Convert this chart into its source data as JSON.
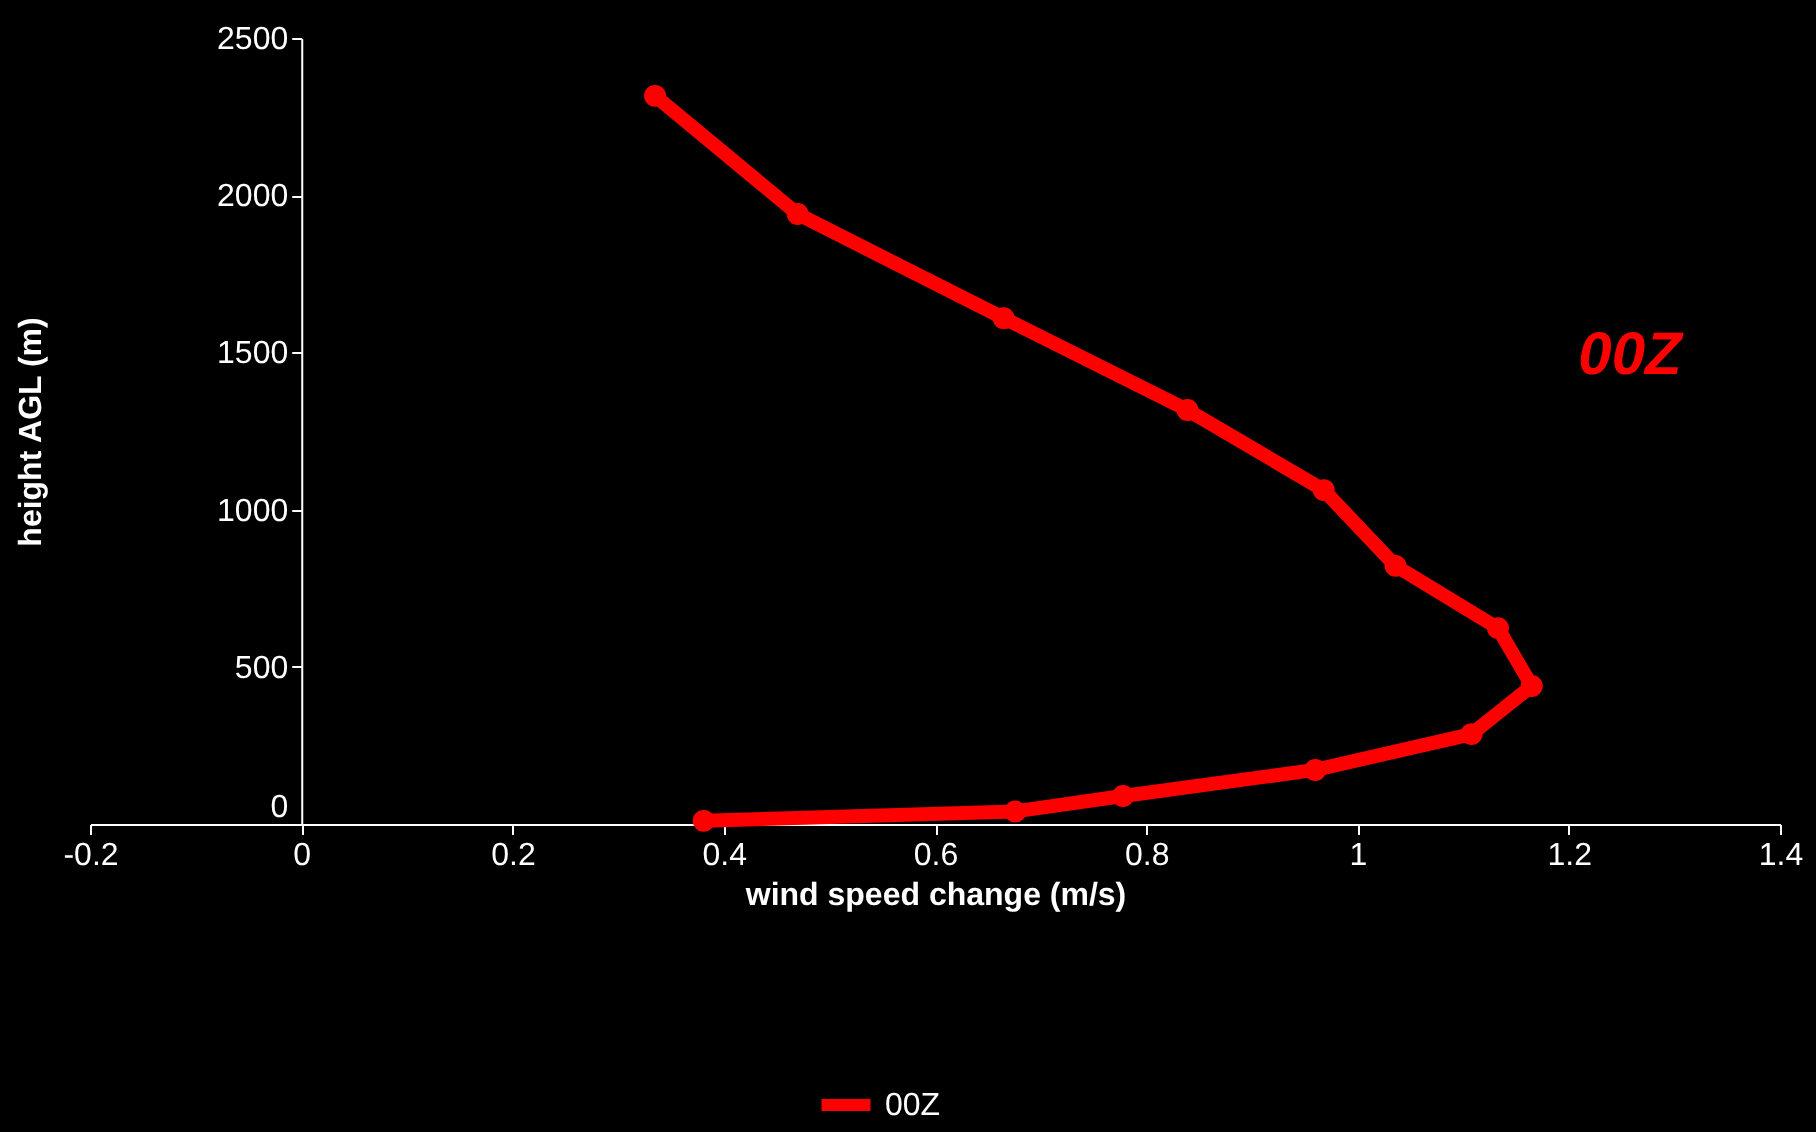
{
  "chart_data": {
    "type": "line",
    "xlabel": "wind speed change (m/s)",
    "ylabel": "height AGL (m)",
    "xlim": [
      -0.2,
      1.4
    ],
    "xticks": [
      -0.2,
      0,
      0.2,
      0.4,
      0.6,
      0.8,
      1,
      1.2,
      1.4
    ],
    "ylim": [
      0,
      2500
    ],
    "yticks": [
      0,
      500,
      1000,
      1500,
      2000,
      2500
    ],
    "series": [
      {
        "name": "00Z",
        "color": "#ff0000",
        "x": [
          0.381,
          0.676,
          0.778,
          0.96,
          1.108,
          1.165,
          1.133,
          1.036,
          0.968,
          0.839,
          0.665,
          0.47,
          0.335
        ],
        "values": [
          10,
          40,
          89,
          172,
          286,
          439,
          623,
          821,
          1062,
          1317,
          1609,
          1940,
          2316
        ]
      }
    ],
    "annotations": [
      "00Z"
    ],
    "marker": "circle",
    "line_style": "solid",
    "grid": false,
    "legend": "bottom"
  }
}
